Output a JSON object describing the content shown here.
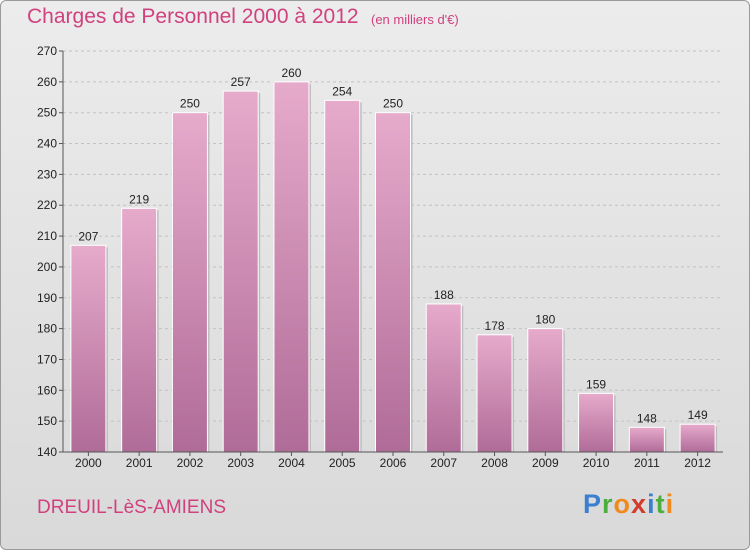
{
  "header": {
    "title": "Charges de Personnel 2000 à 2012",
    "subtitle": "(en milliers d'€)"
  },
  "footer": {
    "commune": "DREUIL-LèS-AMIENS",
    "logo_letters": [
      {
        "char": "P",
        "color": "#3a7fd0"
      },
      {
        "char": "r",
        "color": "#4cae3c"
      },
      {
        "char": "o",
        "color": "#f08a1c"
      },
      {
        "char": "x",
        "color": "#d23a2a"
      },
      {
        "char": "i",
        "color": "#3a7fd0"
      },
      {
        "char": "t",
        "color": "#4cae3c"
      },
      {
        "char": "i",
        "color": "#f08a1c"
      }
    ]
  },
  "colors": {
    "accent": "#d0417e",
    "bar_light": "#e6aacb",
    "bar_dark": "#b06c98"
  },
  "chart_data": {
    "type": "bar",
    "title": "Charges de Personnel 2000 à 2012",
    "subtitle": "(en milliers d'€)",
    "xlabel": "",
    "ylabel": "",
    "categories": [
      "2000",
      "2001",
      "2002",
      "2003",
      "2004",
      "2005",
      "2006",
      "2007",
      "2008",
      "2009",
      "2010",
      "2011",
      "2012"
    ],
    "values": [
      207,
      219,
      250,
      257,
      260,
      254,
      250,
      188,
      178,
      180,
      159,
      148,
      149
    ],
    "ylim": [
      140,
      270
    ],
    "yticks": [
      140,
      150,
      160,
      170,
      180,
      190,
      200,
      210,
      220,
      230,
      240,
      250,
      260,
      270
    ],
    "grid": true,
    "data_labels": true
  }
}
